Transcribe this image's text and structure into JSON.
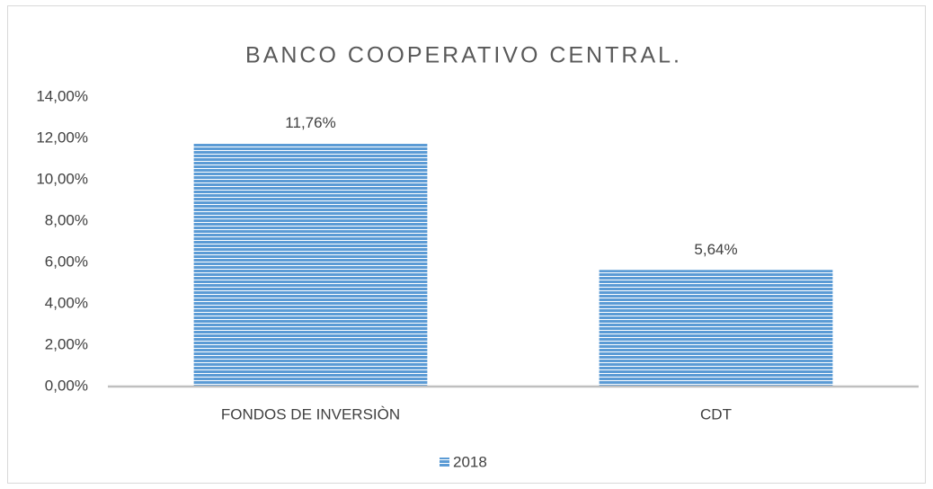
{
  "chart_data": {
    "type": "bar",
    "title": "BANCO COOPERATIVO CENTRAL.",
    "categories": [
      "FONDOS DE INVERSIÒN",
      "CDT"
    ],
    "series": [
      {
        "name": "2018",
        "color": "#5b9bd5",
        "values": [
          11.76,
          5.64
        ],
        "value_labels": [
          "11,76%",
          "5,64%"
        ]
      }
    ],
    "ylim": [
      0,
      14
    ],
    "yticks": [
      {
        "value": 0,
        "label": "0,00%"
      },
      {
        "value": 2,
        "label": "2,00%"
      },
      {
        "value": 4,
        "label": "4,00%"
      },
      {
        "value": 6,
        "label": "6,00%"
      },
      {
        "value": 8,
        "label": "8,00%"
      },
      {
        "value": 10,
        "label": "10,00%"
      },
      {
        "value": 12,
        "label": "12,00%"
      },
      {
        "value": 14,
        "label": "14,00%"
      }
    ],
    "grid": false,
    "legend": "bottom"
  }
}
